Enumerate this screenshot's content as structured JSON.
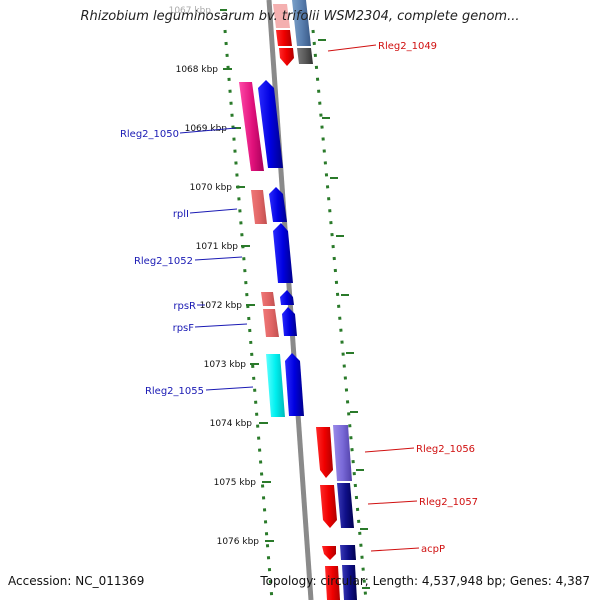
{
  "title": "Rhizobium leguminosarum bv. trifolii WSM2304, complete genom...",
  "footer": {
    "accession": "Accession: NC_011369",
    "topology": "Topology: circular; Length: 4,537,948 bp; Genes: 4,387"
  },
  "colors": {
    "left_gene_label": "#1a1ab4",
    "right_gene_label": "#d01010",
    "tick": "#2a7a2a",
    "backbone": "#8a8a8a"
  },
  "scale_labels": [
    "1067 kbp",
    "1068 kbp",
    "1069 kbp",
    "1070 kbp",
    "1071 kbp",
    "1072 kbp",
    "1073 kbp",
    "1074 kbp",
    "1075 kbp",
    "1076 kbp"
  ],
  "left_genes": [
    {
      "label": "Rleg2_1050"
    },
    {
      "label": "rplI"
    },
    {
      "label": "Rleg2_1052"
    },
    {
      "label": "rpsR"
    },
    {
      "label": "rpsF"
    },
    {
      "label": "Rleg2_1055"
    }
  ],
  "right_genes": [
    {
      "label": "Rleg2_1049"
    },
    {
      "label": "Rleg2_1056"
    },
    {
      "label": "Rleg2_1057"
    },
    {
      "label": "acpP"
    }
  ]
}
